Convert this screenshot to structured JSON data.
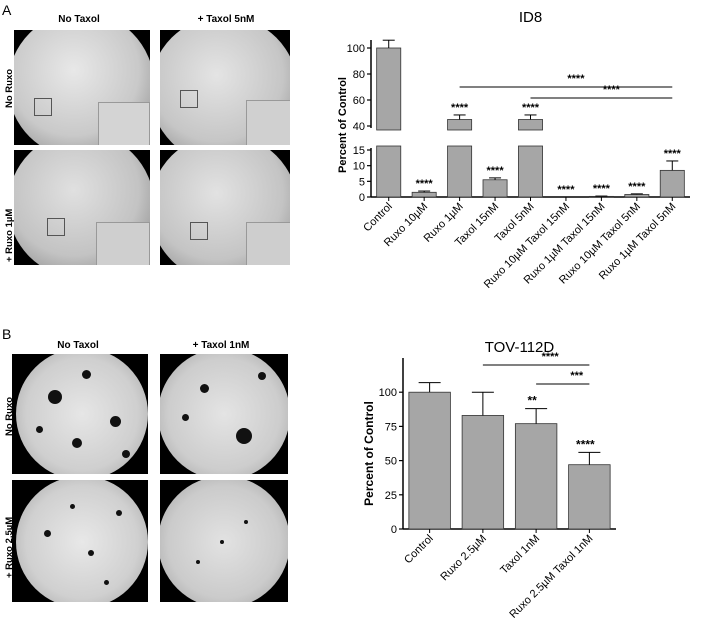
{
  "panelA": {
    "letter": "A",
    "col_labels": [
      "No Taxol",
      "+ Taxol 5nM"
    ],
    "row_labels": [
      "No Ruxo",
      "+ Ruxo 1µM"
    ]
  },
  "panelB": {
    "letter": "B",
    "col_labels": [
      "No Taxol",
      "+ Taxol 1nM"
    ],
    "row_labels": [
      "No Ruxo",
      "+ Ruxo 2.5µM"
    ]
  },
  "chart_data": [
    {
      "type": "bar",
      "title": "ID8",
      "ylabel": "Percent of Control",
      "xlabel": "",
      "axis_break": {
        "lower": [
          0,
          15
        ],
        "upper": [
          40,
          100
        ]
      },
      "yticks": [
        0,
        5,
        10,
        15,
        40,
        60,
        80,
        100
      ],
      "categories": [
        "Control",
        "Ruxo 10µM",
        "Ruxo 1µM",
        "Taxol 15nM",
        "Taxol 5nM",
        "Ruxo 10µM Taxol 15nM",
        "Ruxo 1µM Taxol 15nM",
        "Ruxo 10µM Taxol 5nM",
        "Ruxo 1µM Taxol 5nM"
      ],
      "values": [
        100,
        1.5,
        45,
        5.5,
        45,
        0,
        0.2,
        0.8,
        8.5
      ],
      "errors": [
        6,
        0.4,
        3.5,
        0.6,
        3.5,
        0,
        0.1,
        0.2,
        3
      ],
      "annotations": [
        "",
        "****",
        "****",
        "****",
        "****",
        "****",
        "****",
        "****",
        "****"
      ],
      "brackets": [
        {
          "from": 2,
          "to": 8,
          "label": "****"
        },
        {
          "from": 4,
          "to": 8,
          "label": "****"
        }
      ],
      "bar_color": "#a6a6a6"
    },
    {
      "type": "bar",
      "title": "TOV-112D",
      "ylabel": "Percent of Control",
      "xlabel": "",
      "ylim": [
        0,
        125
      ],
      "yticks": [
        0,
        25,
        50,
        75,
        100
      ],
      "categories": [
        "Control",
        "Ruxo 2.5µM",
        "Taxol 1nM",
        "Ruxo 2.5µM Taxol 1nM"
      ],
      "values": [
        100,
        83,
        77,
        47
      ],
      "errors": [
        7,
        17,
        11,
        9
      ],
      "annotations": [
        "",
        "",
        "**",
        "****"
      ],
      "brackets": [
        {
          "from": 1,
          "to": 3,
          "label": "****"
        },
        {
          "from": 2,
          "to": 3,
          "label": "***"
        }
      ],
      "bar_color": "#a6a6a6"
    }
  ]
}
